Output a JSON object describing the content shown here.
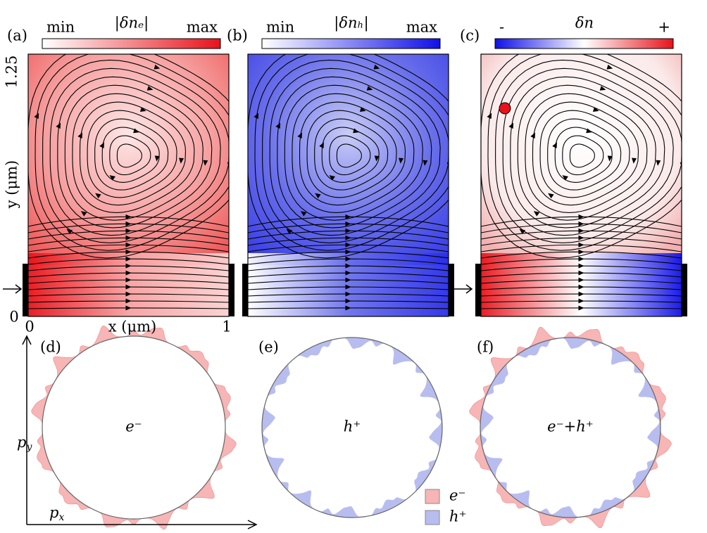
{
  "panels": [
    {
      "label": "(a)",
      "colorbar": {
        "min": "min",
        "title": "|δnₑ|",
        "max": "max"
      }
    },
    {
      "label": "(b)",
      "colorbar": {
        "min": "min",
        "title": "|δnₕ|",
        "max": "max"
      }
    },
    {
      "label": "(c)",
      "colorbar": {
        "min": "-",
        "title": "δn",
        "max": "+"
      }
    }
  ],
  "axes": {
    "y_top": "1.25",
    "y_bottom": "0",
    "y_label": "y (μm)",
    "x_left": "0",
    "x_right": "1",
    "x_label": "x (μm)"
  },
  "momentum": [
    {
      "label": "(d)",
      "text": "e⁻"
    },
    {
      "label": "(e)",
      "text": "h⁺"
    },
    {
      "label": "(f)",
      "text": "e⁻+h⁺"
    }
  ],
  "py": {
    "base": "p",
    "sub": "y"
  },
  "px": {
    "base": "p",
    "sub": "x"
  },
  "legend": [
    {
      "name": "e⁻",
      "color": "#f7b5b5"
    },
    {
      "name": "h⁺",
      "color": "#b8bdf0"
    }
  ]
}
